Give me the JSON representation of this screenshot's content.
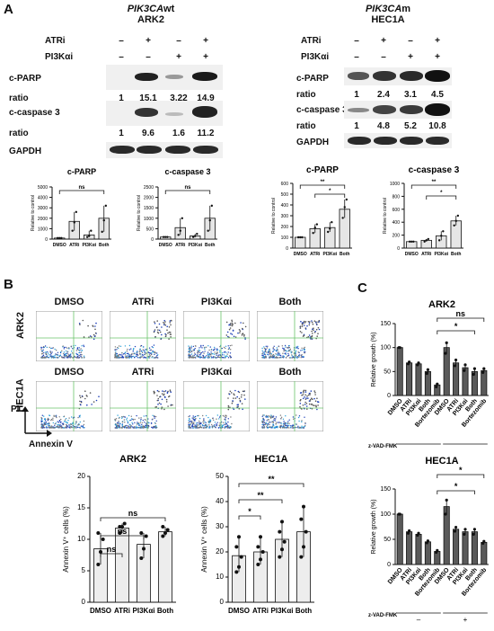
{
  "panel_a": {
    "letter": "A",
    "left_title_gene": "PIK3CA",
    "left_title_suffix": "wt",
    "left_title_cell": "ARK2",
    "right_title_gene": "PIK3CA",
    "right_title_suffix": "m",
    "right_title_cell": "HEC1A",
    "treat_labels": [
      "ATRi",
      "PI3Kαi"
    ],
    "atri_signs": [
      "–",
      "+",
      "–",
      "+"
    ],
    "pi3k_signs": [
      "–",
      "–",
      "+",
      "+"
    ],
    "row_labels": [
      "c-PARP",
      "ratio",
      "c-caspase 3",
      "ratio",
      "GAPDH"
    ],
    "left_parp_ratio": [
      "1",
      "15.1",
      "3.22",
      "14.9"
    ],
    "left_casp_ratio": [
      "1",
      "9.6",
      "1.6",
      "11.2"
    ],
    "right_parp_ratio": [
      "1",
      "2.4",
      "3.1",
      "4.5"
    ],
    "right_casp_ratio": [
      "1",
      "4.8",
      "5.2",
      "10.8"
    ]
  },
  "panel_b": {
    "letter": "B",
    "conditions": [
      "DMSO",
      "ATRi",
      "PI3Kαi",
      "Both"
    ],
    "row_labels": [
      "ARK2",
      "HEC1A"
    ],
    "axis_pi": "PI",
    "axis_annexin": "Annexin V"
  },
  "panel_c": {
    "letter": "C"
  },
  "chart_data": [
    {
      "id": "a-ark2-parp",
      "type": "bar",
      "title": "c-PARP",
      "categories": [
        "DMSO",
        "ATRi",
        "PI3Kαi",
        "Both"
      ],
      "values": [
        100,
        1700,
        400,
        2000
      ],
      "points": [
        [
          100,
          100,
          100
        ],
        [
          800,
          1600,
          2600
        ],
        [
          200,
          300,
          800
        ],
        [
          700,
          1800,
          3200
        ]
      ],
      "ylabel": "Relative to control",
      "ylim": [
        0,
        5000
      ],
      "yticks": [
        0,
        1000,
        2000,
        3000,
        4000,
        5000
      ],
      "sig": [
        {
          "text": "ns"
        }
      ]
    },
    {
      "id": "a-ark2-casp",
      "type": "bar",
      "title": "c-caspase 3",
      "categories": [
        "DMSO",
        "ATRi",
        "PI3Kαi",
        "Both"
      ],
      "values": [
        100,
        550,
        150,
        1000
      ],
      "points": [
        [
          100,
          100,
          100
        ],
        [
          200,
          400,
          1000
        ],
        [
          100,
          150,
          250
        ],
        [
          400,
          900,
          1600
        ]
      ],
      "ylabel": "Relative to control",
      "ylim": [
        0,
        2500
      ],
      "yticks": [
        0,
        500,
        1000,
        1500,
        2000,
        2500
      ],
      "sig": [
        {
          "text": "ns"
        }
      ]
    },
    {
      "id": "a-hec1a-parp",
      "type": "bar",
      "title": "c-PARP",
      "categories": [
        "DMSO",
        "ATRi",
        "PI3Kαi",
        "Both"
      ],
      "values": [
        100,
        180,
        190,
        360
      ],
      "points": [
        [
          100,
          100,
          100
        ],
        [
          140,
          190,
          220
        ],
        [
          150,
          180,
          240
        ],
        [
          280,
          380,
          450
        ]
      ],
      "ylabel": "Relative to control",
      "ylim": [
        0,
        600
      ],
      "yticks": [
        0,
        100,
        200,
        300,
        400,
        500,
        600
      ],
      "sig": [
        {
          "text": "**"
        },
        {
          "text": "*"
        }
      ]
    },
    {
      "id": "a-hec1a-casp",
      "type": "bar",
      "title": "c-caspase 3",
      "categories": [
        "DMSO",
        "ATRi",
        "PI3Kαi",
        "Both"
      ],
      "values": [
        100,
        120,
        190,
        420
      ],
      "points": [
        [
          100,
          100,
          100
        ],
        [
          100,
          120,
          140
        ],
        [
          120,
          190,
          260
        ],
        [
          350,
          420,
          500
        ]
      ],
      "ylabel": "Relative to control",
      "ylim": [
        0,
        1000
      ],
      "yticks": [
        0,
        200,
        400,
        600,
        800,
        1000
      ],
      "sig": [
        {
          "text": "**"
        },
        {
          "text": "*"
        }
      ]
    },
    {
      "id": "b-ark2-annexin",
      "type": "bar",
      "title": "ARK2",
      "categories": [
        "DMSO",
        "ATRi",
        "PI3Kαi",
        "Both"
      ],
      "values": [
        8.5,
        11.8,
        9.2,
        11.2
      ],
      "points": [
        [
          6,
          8,
          10,
          11
        ],
        [
          11,
          12,
          12.5,
          12
        ],
        [
          7,
          8.5,
          10.5,
          11
        ],
        [
          10.5,
          11,
          11.5,
          12
        ]
      ],
      "ylabel": "Annexin V⁺ cells (%)",
      "ylim": [
        0,
        20
      ],
      "yticks": [
        0,
        5,
        10,
        15,
        20
      ],
      "sig": [
        {
          "text": "ns"
        },
        {
          "text": "ns"
        },
        {
          "text": "ns"
        }
      ]
    },
    {
      "id": "b-hec1a-annexin",
      "type": "bar",
      "title": "HEC1A",
      "categories": [
        "DMSO",
        "ATRi",
        "PI3Kαi",
        "Both"
      ],
      "values": [
        18.5,
        20,
        25,
        28
      ],
      "points": [
        [
          12,
          14,
          18,
          22,
          26
        ],
        [
          15,
          17,
          20,
          22,
          26
        ],
        [
          18,
          21,
          24,
          28,
          32
        ],
        [
          18,
          22,
          28,
          33,
          38
        ]
      ],
      "ylabel": "Annexin V⁺ cells (%)",
      "ylim": [
        0,
        50
      ],
      "yticks": [
        0,
        10,
        20,
        30,
        40,
        50
      ],
      "sig": [
        {
          "text": "*"
        },
        {
          "text": "**"
        },
        {
          "text": "**"
        }
      ]
    },
    {
      "id": "c-ark2-growth",
      "type": "bar",
      "title": "ARK2",
      "categories": [
        "DMSO",
        "ATRi",
        "PI3Kαi",
        "Both",
        "Bortezomib",
        "DMSO",
        "ATRi",
        "PI3Kαi",
        "Both",
        "Bortezomib"
      ],
      "values": [
        100,
        68,
        66,
        50,
        22,
        100,
        68,
        58,
        50,
        52
      ],
      "points": [
        [
          100,
          100
        ],
        [
          66,
          70
        ],
        [
          64,
          68
        ],
        [
          46,
          54
        ],
        [
          18,
          24
        ],
        [
          88,
          110
        ],
        [
          62,
          74
        ],
        [
          52,
          64
        ],
        [
          44,
          56
        ],
        [
          48,
          56
        ]
      ],
      "ylabel": "Relative growth (%)",
      "ylim": [
        0,
        150
      ],
      "yticks": [
        0,
        50,
        100,
        150
      ],
      "group_label": "z-VAD-FMK",
      "group_signs": [
        "–",
        "+"
      ],
      "sig": [
        {
          "text": "ns"
        },
        {
          "text": "*"
        }
      ]
    },
    {
      "id": "c-hec1a-growth",
      "type": "bar",
      "title": "HEC1A",
      "categories": [
        "DMSO",
        "ATRi",
        "PI3Kαi",
        "Both",
        "Bortezomib",
        "DMSO",
        "ATRi",
        "PI3Kαi",
        "Both",
        "Bortezomib"
      ],
      "values": [
        100,
        65,
        60,
        45,
        26,
        115,
        70,
        65,
        65,
        44
      ],
      "points": [
        [
          100,
          100
        ],
        [
          62,
          67
        ],
        [
          58,
          62
        ],
        [
          43,
          47
        ],
        [
          24,
          28
        ],
        [
          100,
          128
        ],
        [
          66,
          74
        ],
        [
          60,
          70
        ],
        [
          60,
          70
        ],
        [
          42,
          46
        ]
      ],
      "ylabel": "Relative growth (%)",
      "ylim": [
        0,
        150
      ],
      "yticks": [
        0,
        50,
        100,
        150
      ],
      "group_label": "z-VAD-FMK",
      "group_signs": [
        "–",
        "+"
      ],
      "sig": [
        {
          "text": "*"
        },
        {
          "text": "*"
        }
      ]
    }
  ]
}
